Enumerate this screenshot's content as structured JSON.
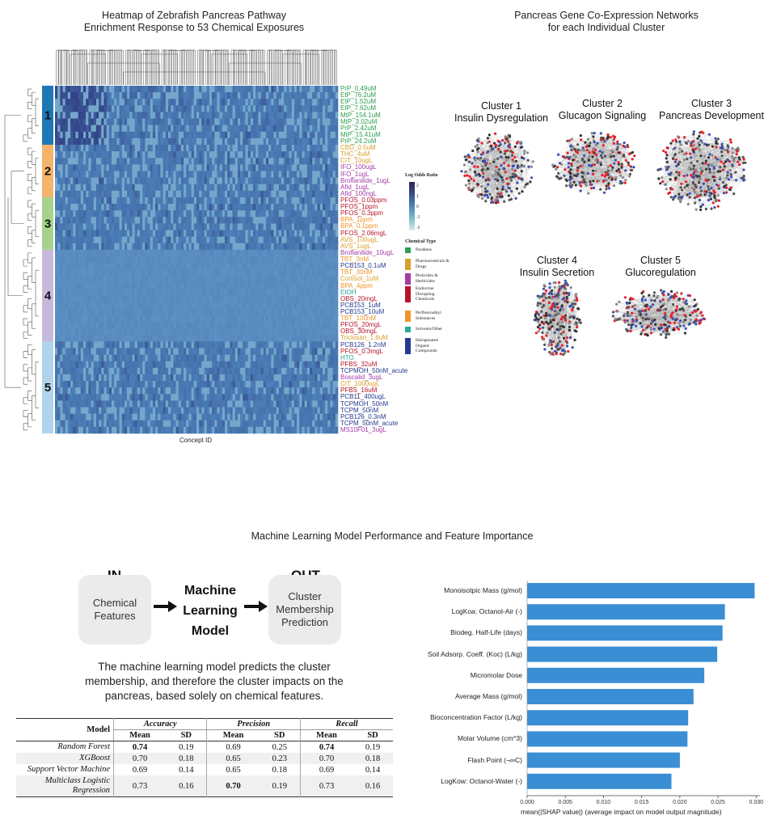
{
  "heatmap": {
    "title_line1": "Heatmap of Zebrafish Pancreas Pathway",
    "title_line2": "Enrichment Response to 53 Chemical Exposures",
    "x_label": "Concept ID",
    "colorbar_title": "Log Odds Ratio",
    "colorbar_ticks": [
      "2",
      "1",
      "0",
      "-1",
      "-2"
    ],
    "cluster_numbers": [
      "1",
      "2",
      "3",
      "4",
      "5"
    ],
    "cluster_colors": [
      "#1f77b4",
      "#f5b36b",
      "#a6d28c",
      "#c7b9d9",
      "#b2d3ec"
    ],
    "chemical_type_title": "Chemical Type",
    "chemical_types": [
      {
        "name": "Parabens",
        "color": "#2e9e4f"
      },
      {
        "name": "Pharmaceuticals & Drugs",
        "color": "#d9a02c"
      },
      {
        "name": "Pesticides & Herbicides",
        "color": "#a43ba6"
      },
      {
        "name": "Endocrine Disrupting Chemicals",
        "color": "#b5152b"
      },
      {
        "name": "Perfluoroalkyl Substances",
        "color": "#f0942a"
      },
      {
        "name": "Solvents/Other",
        "color": "#2aa89c"
      },
      {
        "name": "Halogenated Organic Compounds",
        "color": "#263a8f"
      }
    ],
    "chemicals": [
      {
        "name": "PrP_0.49uM",
        "color": "#2e9e4f"
      },
      {
        "name": "EtP_76.2uM",
        "color": "#2e9e4f"
      },
      {
        "name": "EtP_1.52uM",
        "color": "#2e9e4f"
      },
      {
        "name": "EtP_7.62uM",
        "color": "#2e9e4f"
      },
      {
        "name": "MtP_154.1uM",
        "color": "#2e9e4f"
      },
      {
        "name": "MtP_3.02uM",
        "color": "#2e9e4f"
      },
      {
        "name": "PrP_2.42uM",
        "color": "#2e9e4f"
      },
      {
        "name": "MtP_15.41uM",
        "color": "#2e9e4f"
      },
      {
        "name": "PrP_24.2uM",
        "color": "#2e9e4f"
      },
      {
        "name": "CBD_0.5uM",
        "color": "#d9a02c"
      },
      {
        "name": "THC_4uM",
        "color": "#d9a02c"
      },
      {
        "name": "CIT_10ugL",
        "color": "#d9a02c"
      },
      {
        "name": "IFO_100ugL",
        "color": "#a43ba6"
      },
      {
        "name": "IFO_1ugL",
        "color": "#a43ba6"
      },
      {
        "name": "Broflanilide_1ugL",
        "color": "#a43ba6"
      },
      {
        "name": "Afid_1ugL",
        "color": "#a43ba6"
      },
      {
        "name": "Afid_100ngL",
        "color": "#a43ba6"
      },
      {
        "name": "PFOS_0.03ppm",
        "color": "#b5152b"
      },
      {
        "name": "PFOS_1ppm",
        "color": "#b5152b"
      },
      {
        "name": "PFOS_0.3ppm",
        "color": "#b5152b"
      },
      {
        "name": "BPA_1ppm",
        "color": "#f0942a"
      },
      {
        "name": "BPA_0.1ppm",
        "color": "#f0942a"
      },
      {
        "name": "PFOS_2.06mgL",
        "color": "#b5152b"
      },
      {
        "name": "AVS_100ugL",
        "color": "#d9a02c"
      },
      {
        "name": "AVS_1ugL",
        "color": "#d9a02c"
      },
      {
        "name": "Broflanilide_10ugL",
        "color": "#a43ba6"
      },
      {
        "name": "TBT_3nM",
        "color": "#f0942a"
      },
      {
        "name": "PCB153_0.1uM",
        "color": "#263a8f"
      },
      {
        "name": "TBT_30nM",
        "color": "#f0942a"
      },
      {
        "name": "Cortisol_1uM",
        "color": "#d9a02c"
      },
      {
        "name": "BPA_4ppm",
        "color": "#f0942a"
      },
      {
        "name": "EtOH",
        "color": "#2aa89c"
      },
      {
        "name": "OBS_20mgL",
        "color": "#b5152b"
      },
      {
        "name": "PCB153_1uM",
        "color": "#263a8f"
      },
      {
        "name": "PCB153_10uM",
        "color": "#263a8f"
      },
      {
        "name": "TBT_100nM",
        "color": "#f0942a"
      },
      {
        "name": "PFOS_20mgL",
        "color": "#b5152b"
      },
      {
        "name": "OBS_30mgL",
        "color": "#b5152b"
      },
      {
        "name": "Triclosan_1.6uM",
        "color": "#d9a02c"
      },
      {
        "name": "PCB126_1.2nM",
        "color": "#263a8f"
      },
      {
        "name": "PFOS_0.3mgL",
        "color": "#b5152b"
      },
      {
        "name": "HTO",
        "color": "#2aa89c"
      },
      {
        "name": "PFBS_32uM",
        "color": "#b5152b"
      },
      {
        "name": "TCPMOH_50nM_acute",
        "color": "#263a8f"
      },
      {
        "name": "Boscalid_3ugL",
        "color": "#a43ba6"
      },
      {
        "name": "CIT_1000ugL",
        "color": "#d9a02c"
      },
      {
        "name": "PFBS_16uM",
        "color": "#b5152b"
      },
      {
        "name": "PCB11_400ugL",
        "color": "#263a8f"
      },
      {
        "name": "TCPMOH_50nM",
        "color": "#263a8f"
      },
      {
        "name": "TCPM_50nM",
        "color": "#263a8f"
      },
      {
        "name": "PCB126_0.3nM",
        "color": "#263a8f"
      },
      {
        "name": "TCPM_50nM_acute",
        "color": "#263a8f"
      },
      {
        "name": "MS10F01_3ugL",
        "color": "#a43ba6"
      }
    ]
  },
  "networks": {
    "title_line1": "Pancreas Gene Co-Expression Networks",
    "title_line2": "for each Individual Cluster",
    "clusters": [
      {
        "name": "Cluster 1",
        "subtitle": "Insulin Dysregulation"
      },
      {
        "name": "Cluster 2",
        "subtitle": "Glucagon Signaling"
      },
      {
        "name": "Cluster 3",
        "subtitle": "Pancreas Development"
      },
      {
        "name": "Cluster 4",
        "subtitle": "Insulin Secretion"
      },
      {
        "name": "Cluster 5",
        "subtitle": "Glucoregulation"
      }
    ]
  },
  "ml": {
    "section_title": "Machine Learning Model Performance and Feature Importance",
    "in_label": "IN",
    "in_box": "Chemical Features",
    "model_line1": "Machine",
    "model_line2": "Learning",
    "model_line3": "Model",
    "out_label": "OUT",
    "out_box": "Cluster Membership Prediction",
    "description": "The machine learning model predicts the cluster membership, and therefore the cluster impacts on the pancreas, based solely on chemical features.",
    "table": {
      "model_header": "Model",
      "groups": [
        "Accuracy",
        "Precision",
        "Recall"
      ],
      "sub_headers": [
        "Mean",
        "SD"
      ],
      "rows": [
        {
          "model": "Random Forest",
          "values": [
            "0.74",
            "0.19",
            "0.69",
            "0.25",
            "0.74",
            "0.19"
          ],
          "bold": [
            0,
            4
          ]
        },
        {
          "model": "XGBoost",
          "values": [
            "0.70",
            "0.18",
            "0.65",
            "0.23",
            "0.70",
            "0.18"
          ],
          "bold": []
        },
        {
          "model": "Support Vector Machine",
          "values": [
            "0.69",
            "0.14",
            "0.65",
            "0.18",
            "0.69",
            "0.14"
          ],
          "bold": []
        },
        {
          "model": "Multiclass Logistic Regression",
          "values": [
            "0.73",
            "0.16",
            "0.70",
            "0.19",
            "0.73",
            "0.16"
          ],
          "bold": [
            2
          ]
        }
      ]
    }
  },
  "chart_data": {
    "type": "bar",
    "orientation": "horizontal",
    "title": "",
    "xlabel": "mean(|SHAP value|) (average impact on model output magnitude)",
    "ylabel": "",
    "xlim": [
      0,
      0.0305
    ],
    "xticks": [
      "0.000",
      "0.005",
      "0.010",
      "0.015",
      "0.020",
      "0.025",
      "0.030"
    ],
    "bar_color": "#3a8ed4",
    "categories": [
      "Monoisotpic Mass (g/mol)",
      "LogKoa: Octanol-Air (-)",
      "Biodeg. Half-Life (days)",
      "Soil Adsorp. Coeff. (Koc) (L/kg)",
      "Micromolar Dose",
      "Average Mass (g/mol)",
      "Bioconcentration Factor (L/kg)",
      "Molar Volume (cm^3)",
      "Flash Point (¬∞C)",
      "LogKow: Octanol-Water (-)"
    ],
    "values": [
      0.0298,
      0.0259,
      0.0256,
      0.0249,
      0.0232,
      0.0218,
      0.0211,
      0.021,
      0.02,
      0.0189
    ]
  }
}
